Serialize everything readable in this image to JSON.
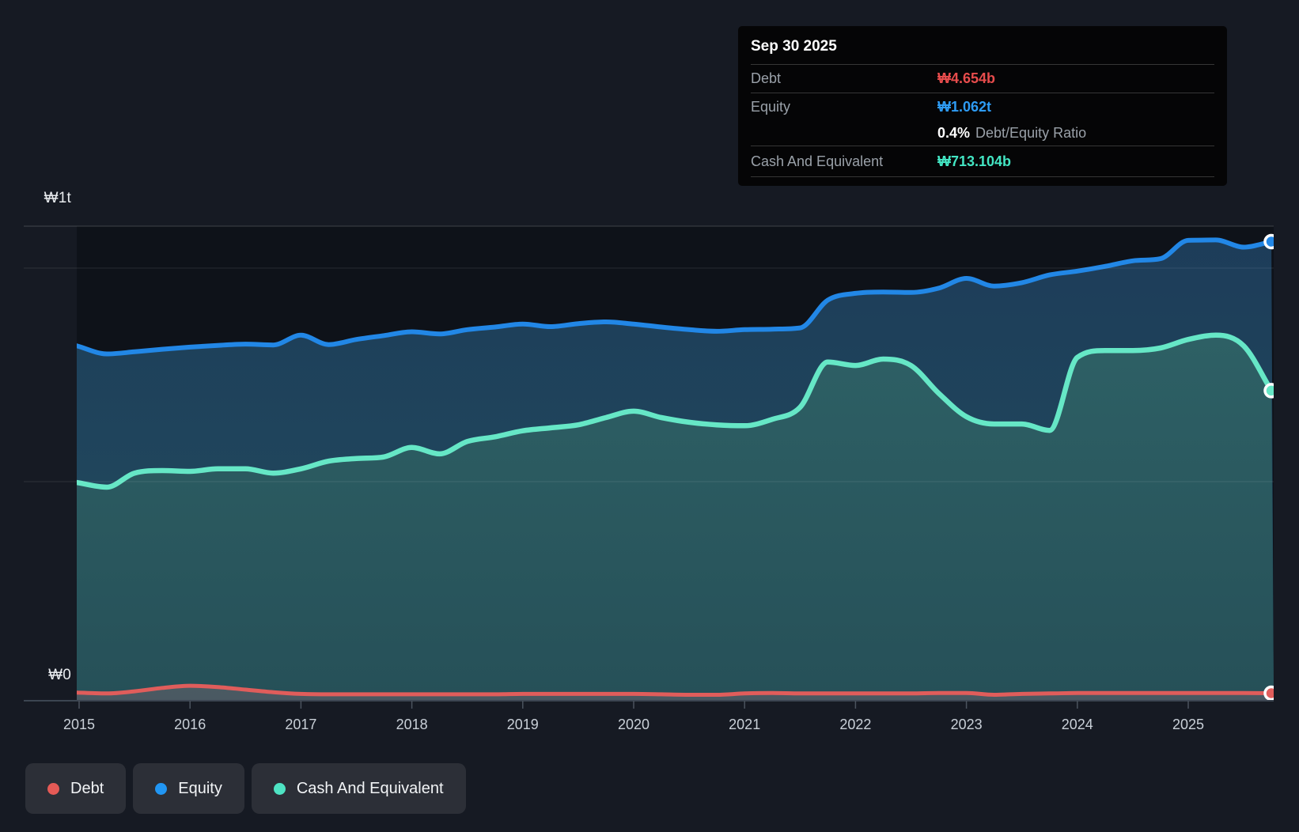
{
  "tooltip": {
    "title": "Sep 30 2025",
    "rows": [
      {
        "label": "Debt",
        "value": "₩4.654b",
        "color": "#e74c4c"
      },
      {
        "label": "Equity",
        "value": "₩1.062t",
        "color": "#2e9bf3"
      },
      {
        "label": "Cash And Equivalent",
        "value": "₩713.104b",
        "color": "#43e5c3"
      }
    ],
    "ratio_value": "0.4%",
    "ratio_label": "Debt/Equity Ratio"
  },
  "axis": {
    "y_top_label": "₩1t",
    "y_zero_label": "₩0"
  },
  "legend": {
    "items": [
      {
        "label": "Debt",
        "color": "#e55a56"
      },
      {
        "label": "Equity",
        "color": "#2196f3"
      },
      {
        "label": "Cash And Equivalent",
        "color": "#4ee3c3"
      }
    ]
  },
  "chart_data": {
    "type": "area",
    "title": "Debt, Equity and Cash history",
    "unit": "KRW billions",
    "x_ticks": [
      2015,
      2016,
      2017,
      2018,
      2019,
      2020,
      2021,
      2022,
      2023,
      2024,
      2025
    ],
    "ylim": [
      0,
      1100
    ],
    "gridline_values_b": [
      0,
      500,
      1000,
      1100
    ],
    "last_point_date": "Sep 30 2025",
    "legend_position": "bottom-left",
    "x": [
      2015.0,
      2015.25,
      2015.5,
      2015.75,
      2016.0,
      2016.25,
      2016.5,
      2016.75,
      2017.0,
      2017.25,
      2017.5,
      2017.75,
      2018.0,
      2018.25,
      2018.5,
      2018.75,
      2019.0,
      2019.25,
      2019.5,
      2019.75,
      2020.0,
      2020.25,
      2020.5,
      2020.75,
      2021.0,
      2021.25,
      2021.5,
      2021.75,
      2022.0,
      2022.25,
      2022.5,
      2022.75,
      2023.0,
      2023.25,
      2023.5,
      2023.75,
      2024.0,
      2024.25,
      2024.5,
      2024.75,
      2025.0,
      2025.25,
      2025.5,
      2025.75
    ],
    "series": [
      {
        "name": "Debt",
        "color": "#e05d5b",
        "fill": "rgba(205,125,135,0.22)",
        "values": [
          6,
          4,
          9,
          17,
          22,
          19,
          13,
          7,
          3,
          2,
          2,
          2,
          2,
          2,
          2,
          2,
          3,
          3,
          3,
          3,
          3,
          2,
          1,
          1,
          4,
          5,
          4,
          4,
          4,
          4,
          4,
          5,
          5,
          1,
          3,
          4,
          5,
          5,
          5,
          5,
          5,
          5,
          5,
          4.654
        ]
      },
      {
        "name": "Equity",
        "color": "#2287e6",
        "fill_top": "#1d3c59",
        "fill_bottom": "#224e5f",
        "values": [
          818,
          799,
          804,
          810,
          815,
          819,
          822,
          820,
          843,
          821,
          833,
          842,
          851,
          846,
          856,
          862,
          869,
          863,
          870,
          874,
          869,
          862,
          856,
          852,
          856,
          857,
          860,
          925,
          941,
          944,
          943,
          953,
          976,
          958,
          966,
          984,
          993,
          1004,
          1017,
          1022,
          1065,
          1066,
          1049,
          1062
        ]
      },
      {
        "name": "Cash And Equivalent",
        "color": "#66e7c6",
        "fill_top": "#306569",
        "fill_bottom": "#265058",
        "values": [
          498,
          487,
          520,
          526,
          524,
          530,
          530,
          520,
          530,
          548,
          554,
          558,
          580,
          565,
          594,
          605,
          619,
          626,
          633,
          650,
          665,
          650,
          639,
          633,
          631,
          646,
          674,
          780,
          772,
          787,
          772,
          707,
          652,
          635,
          635,
          620,
          791,
          807,
          807,
          813,
          833,
          843,
          818,
          713.104
        ]
      }
    ]
  }
}
